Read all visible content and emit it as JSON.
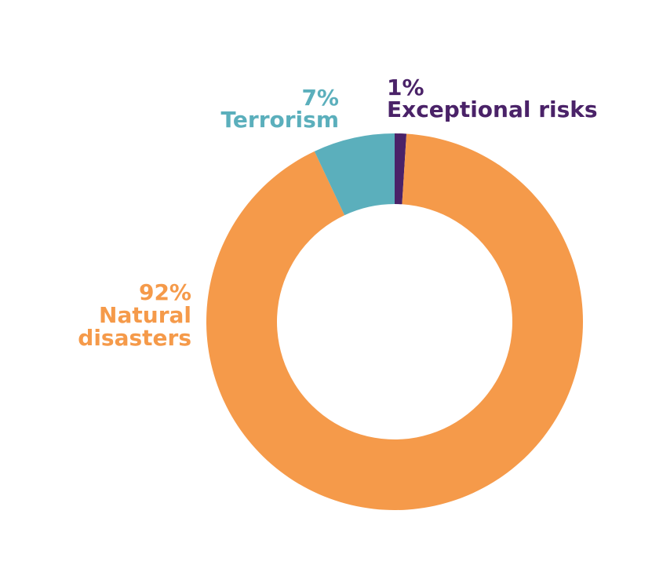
{
  "chart_data": {
    "type": "pie",
    "variant": "donut",
    "slices": [
      {
        "pct_label": "1%",
        "name": "Exceptional risks",
        "value": 1,
        "color": "#4a2268"
      },
      {
        "pct_label": "92%",
        "name_lines": [
          "Natural",
          "disasters"
        ],
        "value": 92,
        "color": "#f59a4a"
      },
      {
        "pct_label": "7%",
        "name": "Terrorism",
        "value": 7,
        "color": "#5bafbc"
      }
    ],
    "legend": "none"
  }
}
